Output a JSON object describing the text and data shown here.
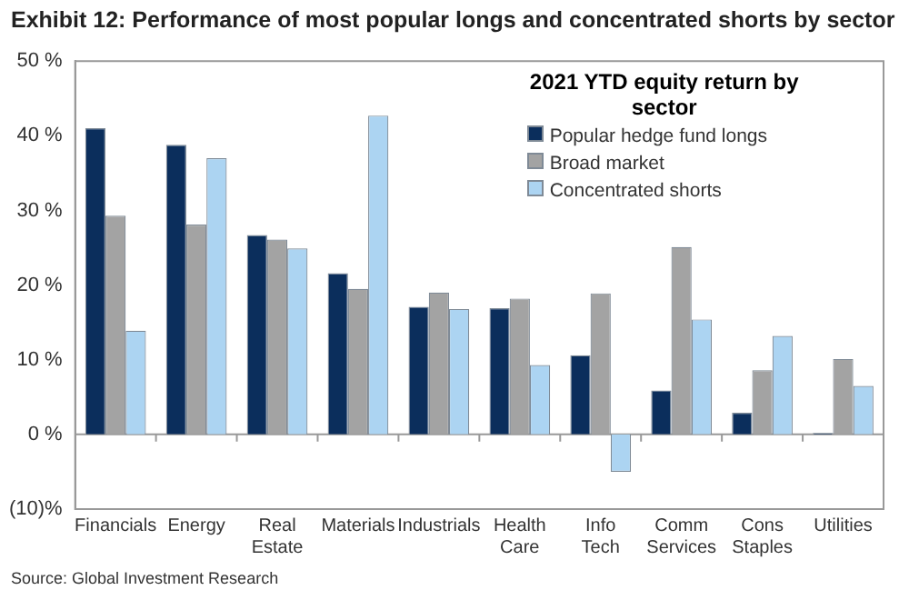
{
  "chart_data": {
    "type": "bar",
    "title": "Exhibit 12: Performance of most popular longs and concentrated shorts by sector",
    "legend_title": "2021 YTD equity return by sector",
    "categories": [
      "Financials",
      "Energy",
      "Real Estate",
      "Materials",
      "Industrials",
      "Health Care",
      "Info Tech",
      "Comm Services",
      "Cons Staples",
      "Utilities"
    ],
    "series": [
      {
        "name": "Popular hedge fund longs",
        "color": "#0b2e5c",
        "values": [
          41.0,
          38.8,
          26.7,
          21.6,
          17.1,
          16.9,
          10.6,
          5.9,
          2.9,
          0.2
        ]
      },
      {
        "name": "Broad market",
        "color": "#a3a3a3",
        "values": [
          29.3,
          28.1,
          26.1,
          19.5,
          19.0,
          18.2,
          18.9,
          25.1,
          8.6,
          10.1
        ]
      },
      {
        "name": "Concentrated shorts",
        "color": "#acd4f2",
        "values": [
          13.9,
          37.0,
          24.9,
          42.7,
          16.8,
          9.3,
          -5.0,
          15.4,
          13.2,
          6.5
        ]
      }
    ],
    "ylim": [
      -10,
      50
    ],
    "yticks": [
      {
        "value": -10,
        "label": "(10)%"
      },
      {
        "value": 0,
        "label": "0 %"
      },
      {
        "value": 10,
        "label": "10 %"
      },
      {
        "value": 20,
        "label": "20 %"
      },
      {
        "value": 30,
        "label": "30 %"
      },
      {
        "value": 40,
        "label": "40 %"
      },
      {
        "value": 50,
        "label": "50 %"
      }
    ],
    "legend": "top right",
    "annotations": [
      "Source: Global Investment Research"
    ]
  }
}
